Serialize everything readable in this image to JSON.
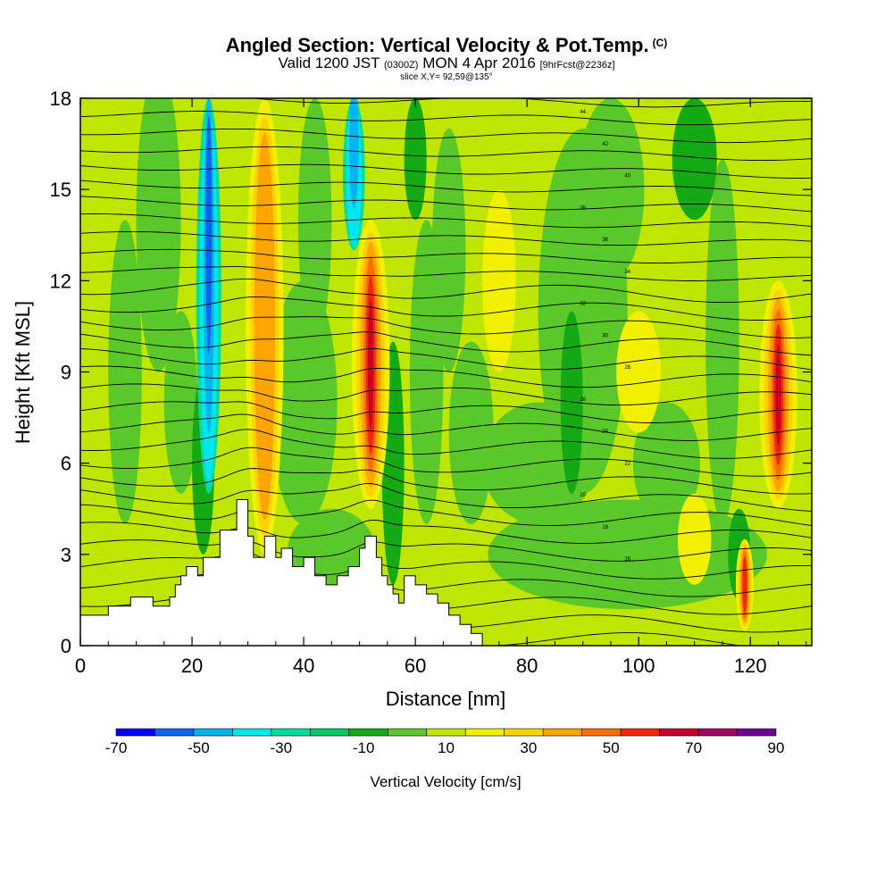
{
  "title": {
    "main": "Angled Section: Vertical Velocity & Pot.Temp.",
    "main_unit": "(C)",
    "valid_prefix": "Valid 1200 JST",
    "valid_zulu": "(0300Z)",
    "valid_date": "MON 4 Apr 2016",
    "forecast": "[9hrFcst@2236z]",
    "slice": "slice X,Y= 92,59@135°"
  },
  "chart_data": {
    "type": "heatmap",
    "xlabel": "Distance [nm]",
    "ylabel": "Height [Kft MSL]",
    "xlim": [
      0,
      131
    ],
    "ylim": [
      0,
      18
    ],
    "xticks": [
      0,
      20,
      40,
      60,
      80,
      100,
      120
    ],
    "yticks": [
      0,
      3,
      6,
      9,
      12,
      15,
      18
    ],
    "background_level": "0 to 10 cm/s",
    "updraft_cores": [
      {
        "x": 33,
        "ymin": 3.0,
        "ymax": 18,
        "peak": "10 to 30 cm/s"
      },
      {
        "x": 52,
        "ymin": 4.5,
        "ymax": 14,
        "peak": "70 to 80 cm/s"
      },
      {
        "x": 125,
        "ymin": 4.5,
        "ymax": 12,
        "peak": "50 to 70 cm/s"
      },
      {
        "x": 119,
        "ymin": 0.5,
        "ymax": 3.5,
        "peak": "40 to 50 cm/s"
      }
    ],
    "downdraft_cores": [
      {
        "x": 23,
        "ymin": 5,
        "ymax": 18,
        "peak": "-60 to -40 cm/s"
      },
      {
        "x": 49,
        "ymin": 13,
        "ymax": 18,
        "peak": "-40 to -20 cm/s"
      }
    ],
    "terrain_heights_kft": {
      "x": [
        0,
        5,
        9,
        13,
        16,
        17,
        18,
        19,
        20,
        21,
        22,
        25,
        28,
        29,
        30,
        31,
        33,
        35,
        36,
        38,
        40,
        42,
        44,
        46,
        48,
        50,
        51,
        52,
        53,
        54,
        55,
        56,
        57,
        58,
        60,
        62,
        64,
        66,
        68,
        70,
        72
      ],
      "y": [
        1.0,
        1.3,
        1.6,
        1.3,
        1.6,
        2.0,
        2.3,
        2.6,
        2.6,
        2.3,
        2.9,
        3.8,
        4.8,
        4.8,
        3.6,
        2.9,
        3.6,
        2.9,
        3.2,
        2.6,
        2.9,
        2.3,
        2.0,
        2.3,
        2.6,
        3.2,
        3.6,
        3.6,
        2.9,
        2.3,
        2.0,
        1.7,
        1.4,
        2.3,
        2.0,
        1.7,
        1.4,
        1.0,
        0.7,
        0.4,
        0.0
      ]
    },
    "isentropes": {
      "count": 32,
      "sample_labels": [
        "44",
        "42",
        "40",
        "38",
        "36",
        "34",
        "32",
        "30",
        "28",
        "26",
        "24",
        "22",
        "20",
        "18",
        "16"
      ]
    },
    "colorbar": {
      "title": "Vertical Velocity [cm/s]",
      "tick_labels": [
        "-70",
        "-50",
        "-30",
        "-10",
        "10",
        "30",
        "50",
        "70",
        "90"
      ],
      "levels": [
        -70,
        -60,
        -50,
        -40,
        -30,
        -20,
        -10,
        0,
        10,
        20,
        30,
        40,
        50,
        60,
        70,
        80,
        90
      ],
      "colors": [
        "#0000FF",
        "#0A64F0",
        "#00B4F0",
        "#00E6F0",
        "#00DCA0",
        "#00C864",
        "#14AA14",
        "#5AC828",
        "#BEE600",
        "#F0F000",
        "#FFD200",
        "#FFA500",
        "#FF6E00",
        "#F02800",
        "#C80028",
        "#A00064",
        "#6E0096"
      ]
    }
  },
  "colors": {
    "background_field": "#BEE600",
    "terrain_fill": "#ffffff",
    "contour": "#000000"
  }
}
